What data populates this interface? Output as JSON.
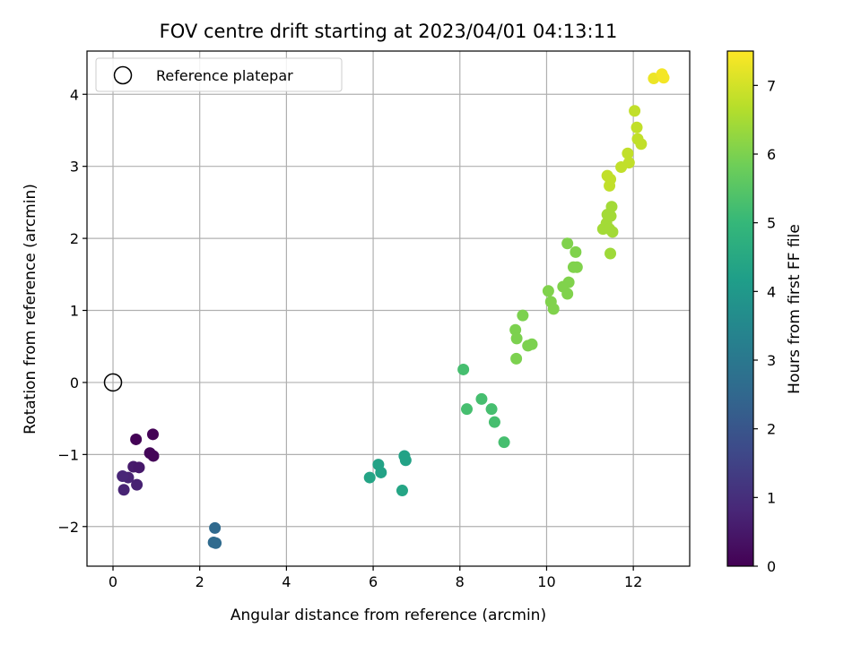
{
  "chart_data": {
    "type": "scatter",
    "title": "FOV centre drift starting at 2023/04/01 04:13:11",
    "xlabel": "Angular distance from reference (arcmin)",
    "ylabel": "Rotation from reference (arcmin)",
    "xlim": [
      -0.6,
      13.3
    ],
    "ylim": [
      -2.55,
      4.6
    ],
    "xticks": [
      0,
      2,
      4,
      6,
      8,
      10,
      12
    ],
    "yticks": [
      -2,
      -1,
      0,
      1,
      2,
      3,
      4
    ],
    "xtick_labels": [
      "0",
      "2",
      "4",
      "6",
      "8",
      "10",
      "12"
    ],
    "ytick_labels": [
      "−2",
      "−1",
      "0",
      "1",
      "2",
      "3",
      "4"
    ],
    "grid": true,
    "legend": {
      "location": "upper-left",
      "entries": [
        "Reference platepar"
      ]
    },
    "reference_point": {
      "x": 0,
      "y": 0,
      "marker": "open-circle"
    },
    "colorbar": {
      "label": "Hours from first FF file",
      "range": [
        0,
        7.5
      ],
      "ticks": [
        0,
        1,
        2,
        3,
        4,
        5,
        6,
        7
      ],
      "tick_labels": [
        "0",
        "1",
        "2",
        "3",
        "4",
        "5",
        "6",
        "7"
      ],
      "colormap": "viridis",
      "colormap_stops": [
        "#440154",
        "#482878",
        "#3e4989",
        "#31688e",
        "#26828e",
        "#1f9e89",
        "#35b779",
        "#6ece58",
        "#b5de2b",
        "#fde725"
      ]
    },
    "x": [
      0.92,
      0.53,
      0.85,
      0.93,
      0.47,
      0.6,
      0.35,
      0.22,
      0.55,
      0.25,
      2.35,
      2.32,
      2.37,
      6.72,
      6.12,
      6.18,
      6.75,
      5.92,
      6.67,
      8.08,
      8.16,
      8.5,
      8.73,
      8.8,
      9.02,
      9.28,
      9.31,
      9.45,
      9.57,
      9.3,
      9.66,
      10.04,
      10.1,
      10.16,
      10.38,
      10.48,
      10.51,
      10.48,
      10.62,
      10.7,
      10.67,
      11.47,
      11.3,
      11.38,
      11.45,
      11.5,
      11.4,
      11.48,
      11.52,
      11.45,
      11.4,
      11.47,
      11.72,
      11.87,
      11.9,
      12.03,
      12.08,
      12.1,
      12.18,
      12.47,
      12.66,
      12.7
    ],
    "y": [
      -0.72,
      -0.79,
      -0.98,
      -1.02,
      -1.17,
      -1.18,
      -1.32,
      -1.3,
      -1.42,
      -1.49,
      -2.02,
      -2.22,
      -2.23,
      -1.02,
      -1.14,
      -1.25,
      -1.08,
      -1.32,
      -1.5,
      0.18,
      -0.37,
      -0.23,
      -0.37,
      -0.55,
      -0.83,
      0.73,
      0.61,
      0.93,
      0.51,
      0.33,
      0.53,
      1.27,
      1.12,
      1.02,
      1.33,
      1.23,
      1.39,
      1.93,
      1.6,
      1.6,
      1.81,
      1.79,
      2.13,
      2.21,
      2.13,
      2.44,
      2.33,
      2.31,
      2.09,
      2.73,
      2.87,
      2.82,
      2.99,
      3.18,
      3.05,
      3.77,
      3.54,
      3.38,
      3.31,
      4.22,
      4.28,
      4.23
    ],
    "color_values": [
      0.05,
      0.05,
      0.1,
      0.1,
      0.55,
      0.5,
      0.75,
      0.8,
      0.7,
      0.75,
      2.55,
      2.6,
      2.6,
      4.3,
      4.3,
      4.3,
      4.3,
      4.35,
      4.4,
      5.25,
      5.25,
      5.25,
      5.25,
      5.25,
      5.25,
      6.0,
      6.0,
      6.0,
      6.0,
      6.0,
      6.0,
      6.05,
      6.05,
      6.05,
      6.05,
      6.05,
      6.05,
      6.05,
      6.05,
      6.05,
      6.05,
      6.4,
      6.45,
      6.45,
      6.45,
      6.45,
      6.45,
      6.45,
      6.45,
      6.8,
      6.8,
      6.8,
      6.8,
      6.8,
      6.8,
      6.8,
      6.8,
      6.8,
      6.8,
      7.3,
      7.4,
      7.4
    ]
  }
}
